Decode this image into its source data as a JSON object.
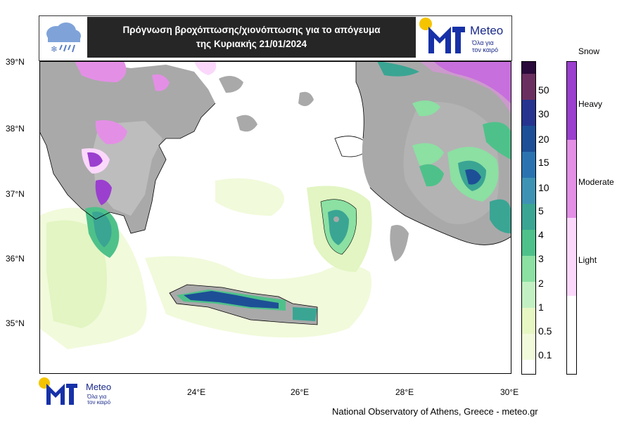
{
  "header": {
    "title_line1": "Πρόγνωση βροχόπτωσης/χιονόπτωσης για το απόγευμα",
    "title_line2": "της Κυριακής 21/01/2024"
  },
  "logo": {
    "name": "Meteo",
    "tagline1": "Όλα για",
    "tagline2": "τον καιρό"
  },
  "map": {
    "lat_labels": [
      "39°N",
      "38°N",
      "37°N",
      "36°N",
      "35°N"
    ],
    "lon_labels": [
      "24°E",
      "26°E",
      "28°E",
      "30°E"
    ]
  },
  "precip_scale": {
    "labels": [
      "50",
      "30",
      "20",
      "15",
      "10",
      "5",
      "4",
      "3",
      "2",
      "1",
      "0.5",
      "0.1"
    ],
    "colors": [
      "#2a0a3a",
      "#6a2f5e",
      "#26348f",
      "#1d4f96",
      "#2a73b0",
      "#3e93b4",
      "#3aa593",
      "#4ec18a",
      "#8be0a2",
      "#c3f0c3",
      "#e6f7c4",
      "#f2fadc",
      "#ffffff"
    ]
  },
  "snow_scale": {
    "title": "Snow",
    "labels": [
      "Heavy",
      "Moderate",
      "Light"
    ],
    "colors": [
      "#9b3fcf",
      "#e48fe6",
      "#fbd8fb",
      "#ffffff"
    ]
  },
  "credit": "National Observatory of Athens, Greece - meteo.gr"
}
